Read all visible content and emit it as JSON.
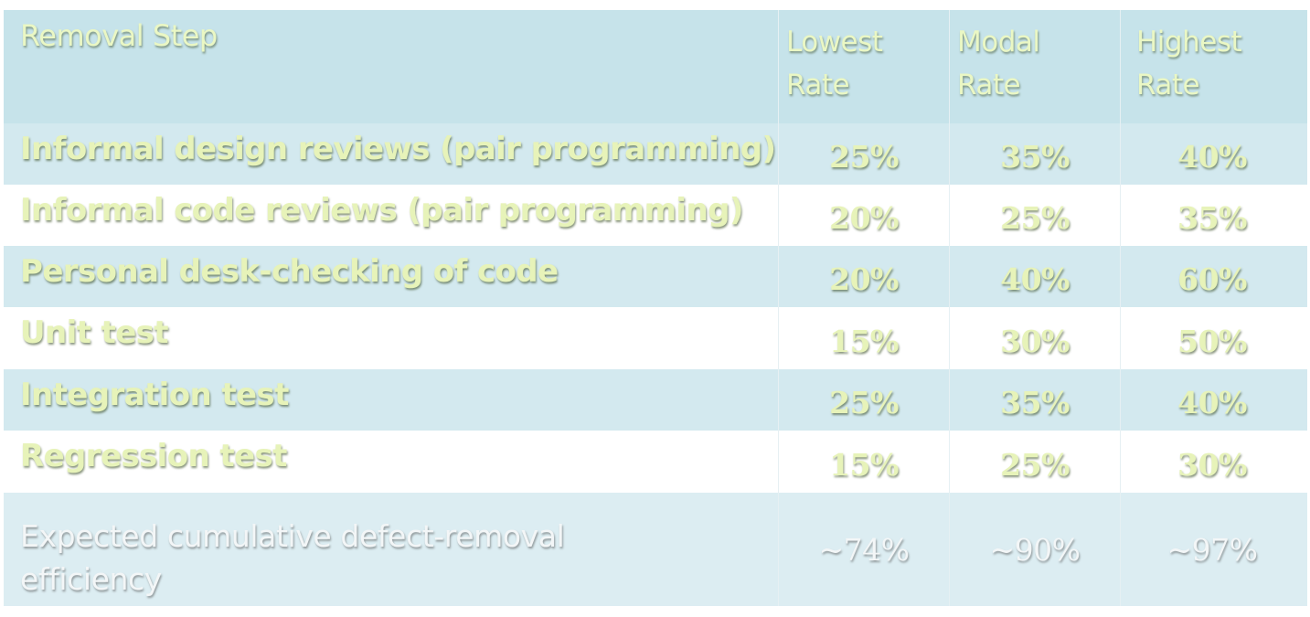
{
  "table": {
    "headers": {
      "step": "Removal Step",
      "lowest": [
        "Lowest",
        "Rate"
      ],
      "modal": [
        "Modal",
        "Rate"
      ],
      "highest": [
        "Highest",
        "Rate"
      ]
    },
    "rows": [
      {
        "step": "Informal design reviews (pair programming)",
        "lowest": "25%",
        "modal": "35%",
        "highest": "40%"
      },
      {
        "step": "Informal code reviews (pair programming)",
        "lowest": "20%",
        "modal": "25%",
        "highest": "35%"
      },
      {
        "step": "Personal desk-checking of code",
        "lowest": "20%",
        "modal": "40%",
        "highest": "60%"
      },
      {
        "step": "Unit test",
        "lowest": "15%",
        "modal": "30%",
        "highest": "50%"
      },
      {
        "step": "Integration test",
        "lowest": "25%",
        "modal": "35%",
        "highest": "40%"
      },
      {
        "step": "Regression test",
        "lowest": "15%",
        "modal": "25%",
        "highest": "30%"
      }
    ],
    "total": {
      "step": [
        "Expected cumulative defect-removal",
        "efficiency"
      ],
      "lowest": "~74%",
      "modal": "~90%",
      "highest": "~97%"
    }
  }
}
